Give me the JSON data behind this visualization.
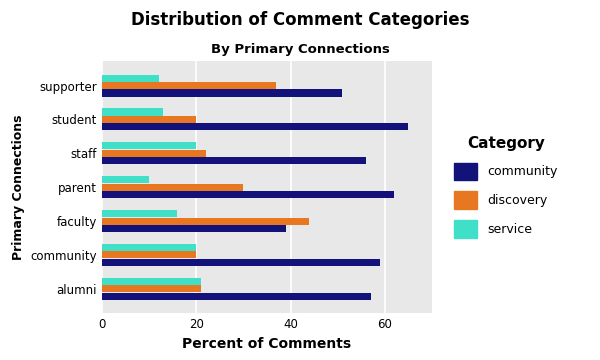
{
  "title": "Distribution of Comment Categories",
  "subtitle": "By Primary Connections",
  "xlabel": "Percent of Comments",
  "ylabel": "Primary Connections",
  "categories": [
    "alumni",
    "community",
    "faculty",
    "parent",
    "staff",
    "student",
    "supporter"
  ],
  "community": [
    57,
    59,
    39,
    62,
    56,
    65,
    51
  ],
  "discovery": [
    21,
    20,
    44,
    30,
    22,
    20,
    37
  ],
  "service": [
    21,
    20,
    16,
    10,
    20,
    13,
    12
  ],
  "color_community": "#12127a",
  "color_discovery": "#e87722",
  "color_service": "#40e0c8",
  "bg_color": "#e8e8e8",
  "xlim": [
    0,
    70
  ],
  "xticks": [
    0,
    20,
    40,
    60
  ],
  "bar_height": 0.22,
  "legend_title": "Category",
  "legend_labels": [
    "community",
    "discovery",
    "service"
  ]
}
